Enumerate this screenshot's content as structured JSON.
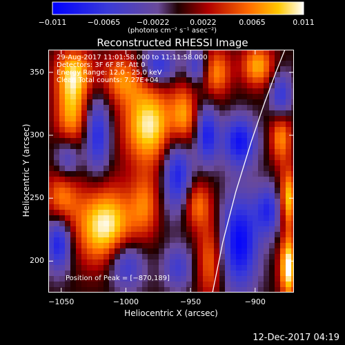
{
  "chart_data": {
    "type": "heatmap",
    "title": "Reconstructed RHESSI Image",
    "xlabel": "Heliocentric X (arcsec)",
    "ylabel": "Heliocentric Y (arcsec)",
    "xlim": [
      -1060,
      -870
    ],
    "ylim": [
      175,
      368
    ],
    "xticks": [
      -1050,
      -1000,
      -950,
      -900
    ],
    "yticks": [
      200,
      250,
      300,
      350
    ],
    "colorbar": {
      "ticks": [
        -0.011,
        -0.0065,
        -0.0022,
        0.0022,
        0.0065,
        0.011
      ],
      "tick_labels": [
        "−0.011",
        "−0.0065",
        "−0.0022",
        "0.0022",
        "0.0065",
        "0.011"
      ],
      "range": [
        -0.011,
        0.011
      ],
      "unit_label": "(photons cm⁻² s⁻¹ asec⁻²)"
    },
    "annotations": [
      "29-Aug-2017 11:01:58.000 to 11:11:58.000",
      "Detectors: 3F 6F 8F, Att 0",
      "Energy Range: 12.0 - 25.0 keV",
      "Clean     Total counts: 7.27E+04"
    ],
    "peak_label": "Position of Peak = [−870,189]",
    "peak_position": [
      -870,
      189
    ],
    "limb_curve": {
      "x": [
        -933,
        -925,
        -915,
        -903,
        -893,
        -884,
        -877
      ],
      "y": [
        175,
        215,
        255,
        295,
        325,
        350,
        368
      ]
    },
    "sources": [
      {
        "x": -1016,
        "y": 228,
        "value": 0.011,
        "sx": 16,
        "sy": 22
      },
      {
        "x": -982,
        "y": 308,
        "value": 0.0105,
        "sx": 14,
        "sy": 22
      },
      {
        "x": -1042,
        "y": 318,
        "value": 0.008,
        "sx": 9,
        "sy": 22
      },
      {
        "x": -1040,
        "y": 350,
        "value": 0.0075,
        "sx": 10,
        "sy": 14
      },
      {
        "x": -1003,
        "y": 345,
        "value": 0.0065,
        "sx": 12,
        "sy": 14
      },
      {
        "x": -1050,
        "y": 250,
        "value": 0.0065,
        "sx": 9,
        "sy": 16
      },
      {
        "x": -985,
        "y": 245,
        "value": 0.0055,
        "sx": 8,
        "sy": 18
      },
      {
        "x": -955,
        "y": 315,
        "value": 0.007,
        "sx": 7,
        "sy": 18
      },
      {
        "x": -945,
        "y": 245,
        "value": 0.0065,
        "sx": 8,
        "sy": 14
      },
      {
        "x": -935,
        "y": 200,
        "value": 0.006,
        "sx": 7,
        "sy": 22
      },
      {
        "x": -930,
        "y": 350,
        "value": 0.007,
        "sx": 8,
        "sy": 14
      },
      {
        "x": -898,
        "y": 355,
        "value": 0.008,
        "sx": 9,
        "sy": 12
      },
      {
        "x": -874,
        "y": 195,
        "value": 0.0115,
        "sx": 5,
        "sy": 18
      },
      {
        "x": -874,
        "y": 250,
        "value": 0.009,
        "sx": 5,
        "sy": 16
      },
      {
        "x": -880,
        "y": 300,
        "value": 0.0075,
        "sx": 6,
        "sy": 16
      },
      {
        "x": -1022,
        "y": 300,
        "value": -0.008,
        "sx": 7,
        "sy": 22
      },
      {
        "x": -1045,
        "y": 282,
        "value": -0.0065,
        "sx": 7,
        "sy": 12
      },
      {
        "x": -1052,
        "y": 215,
        "value": -0.009,
        "sx": 7,
        "sy": 16
      },
      {
        "x": -1000,
        "y": 198,
        "value": -0.0075,
        "sx": 10,
        "sy": 14
      },
      {
        "x": -960,
        "y": 270,
        "value": -0.009,
        "sx": 8,
        "sy": 22
      },
      {
        "x": -975,
        "y": 355,
        "value": -0.0075,
        "sx": 10,
        "sy": 10
      },
      {
        "x": -937,
        "y": 300,
        "value": -0.0085,
        "sx": 6,
        "sy": 16
      },
      {
        "x": -945,
        "y": 355,
        "value": -0.006,
        "sx": 6,
        "sy": 10
      },
      {
        "x": -912,
        "y": 295,
        "value": -0.0095,
        "sx": 9,
        "sy": 14
      },
      {
        "x": -912,
        "y": 215,
        "value": -0.0105,
        "sx": 10,
        "sy": 26
      },
      {
        "x": -890,
        "y": 240,
        "value": -0.0075,
        "sx": 7,
        "sy": 14
      },
      {
        "x": -880,
        "y": 330,
        "value": -0.0075,
        "sx": 6,
        "sy": 14
      },
      {
        "x": -960,
        "y": 195,
        "value": -0.0055,
        "sx": 8,
        "sy": 12
      }
    ]
  },
  "footer": {
    "timestamp": "12-Dec-2017 04:19"
  }
}
